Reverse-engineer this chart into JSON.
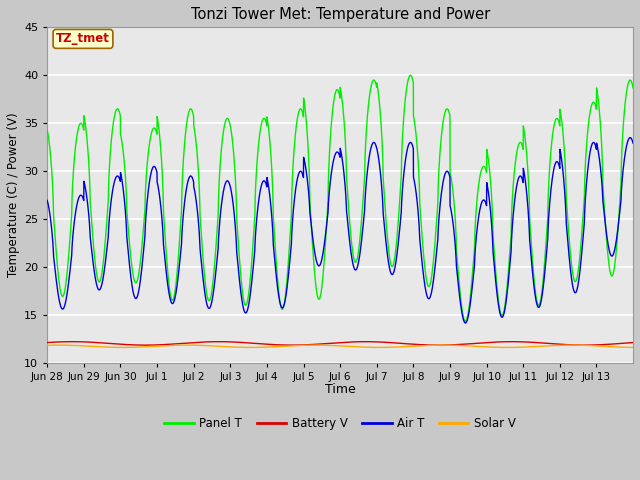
{
  "title": "Tonzi Tower Met: Temperature and Power",
  "xlabel": "Time",
  "ylabel": "Temperature (C) / Power (V)",
  "annotation_text": "TZ_tmet",
  "annotation_color": "#cc0000",
  "annotation_bg": "#ffffcc",
  "annotation_border": "#996600",
  "ylim": [
    10,
    45
  ],
  "yticks": [
    10,
    15,
    20,
    25,
    30,
    35,
    40,
    45
  ],
  "fig_bg": "#c8c8c8",
  "plot_bg": "#e8e8e8",
  "grid_color": "#ffffff",
  "colors": {
    "Panel T": "#00ee00",
    "Battery V": "#dd0000",
    "Air T": "#0000dd",
    "Solar V": "#ffaa00"
  },
  "legend_labels": [
    "Panel T",
    "Battery V",
    "Air T",
    "Solar V"
  ],
  "n_days": 16,
  "x_tick_labels": [
    "Jun 28",
    "Jun 29",
    "Jun 30",
    "Jul 1",
    "Jul 2",
    "Jul 3",
    "Jul 4",
    "Jul 5",
    "Jul 6",
    "Jul 7",
    "Jul 8",
    "Jul 9",
    "Jul 10",
    "Jul 11",
    "Jul 12",
    "Jul 13"
  ],
  "panel_peaks": [
    35.0,
    36.5,
    34.5,
    36.5,
    35.5,
    35.5,
    36.5,
    38.5,
    39.5,
    40.0,
    36.5,
    30.5,
    33.0,
    35.5,
    37.2,
    39.5
  ],
  "panel_troughs": [
    16.0,
    17.5,
    17.5,
    15.5,
    15.5,
    15.0,
    14.5,
    15.5,
    19.5,
    19.0,
    17.0,
    13.5,
    14.0,
    15.0,
    17.5,
    18.0
  ],
  "air_peaks": [
    27.5,
    29.5,
    30.5,
    29.5,
    29.0,
    29.0,
    30.0,
    32.0,
    33.0,
    33.0,
    30.0,
    27.0,
    29.5,
    31.0,
    33.0,
    33.5
  ],
  "air_troughs": [
    15.0,
    17.0,
    16.0,
    15.5,
    15.0,
    14.5,
    15.0,
    19.5,
    19.0,
    18.5,
    16.0,
    13.5,
    14.0,
    15.0,
    16.5,
    20.5
  ],
  "battery_mean": 12.05,
  "battery_amplitude": 0.18,
  "solar_mean": 11.75,
  "solar_amplitude": 0.12,
  "pts_per_day": 288
}
